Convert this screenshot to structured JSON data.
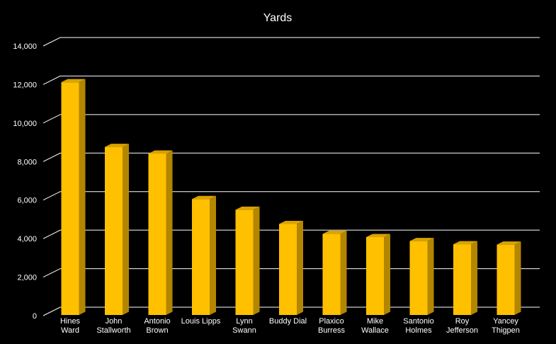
{
  "chart_data": {
    "type": "bar",
    "title": "Yards",
    "xlabel": "",
    "ylabel": "",
    "ylim": [
      0,
      14000
    ],
    "yticks": [
      0,
      2000,
      4000,
      6000,
      8000,
      10000,
      12000,
      14000
    ],
    "ytick_labels": [
      "0",
      "2,000",
      "4,000",
      "6,000",
      "8,000",
      "10,000",
      "12,000",
      "14,000"
    ],
    "grid": true,
    "legend": "none",
    "colors": {
      "bar_front": "#FFC000",
      "bar_side": "#B38600",
      "bar_top": "#D9A300",
      "background": "#000000",
      "text": "#FFFFFF"
    },
    "categories": [
      [
        "Hines",
        "Ward"
      ],
      [
        "John",
        "Stallworth"
      ],
      [
        "Antonio",
        "Brown"
      ],
      [
        "Louis Lipps"
      ],
      [
        "Lynn",
        "Swann"
      ],
      [
        "Buddy Dial"
      ],
      [
        "Plaxico",
        "Burress"
      ],
      [
        "Mike",
        "Wallace"
      ],
      [
        "Santonio",
        "Holmes"
      ],
      [
        "Roy",
        "Jefferson"
      ],
      [
        "Yancey",
        "Thigpen"
      ]
    ],
    "values": [
      12083,
      8723,
      8377,
      6018,
      5462,
      4723,
      4206,
      4042,
      3835,
      3671,
      3651
    ]
  }
}
